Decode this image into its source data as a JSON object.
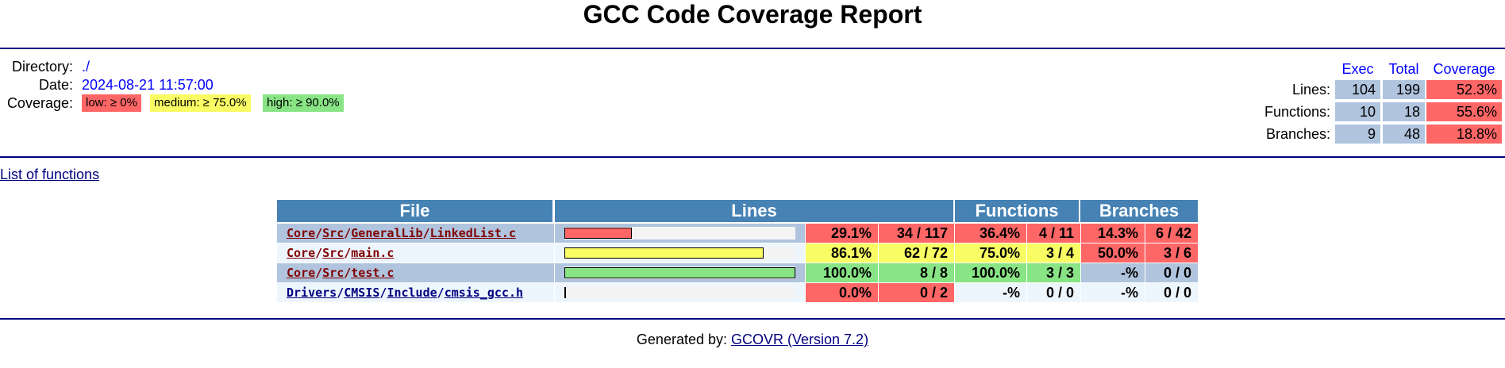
{
  "header": {
    "title": "GCC Code Coverage Report"
  },
  "info": {
    "directory_label": "Directory:",
    "directory_value": "./",
    "date_label": "Date:",
    "date_value": "2024-08-21 11:57:00",
    "coverage_label": "Coverage:",
    "legend": [
      {
        "label": "low: ≥ 0%",
        "color": "#ff6666"
      },
      {
        "label": "medium: ≥ 75.0%",
        "color": "#f9fd63"
      },
      {
        "label": "high: ≥ 90.0%",
        "color": "#88e485"
      }
    ]
  },
  "summary": {
    "headers": [
      "Exec",
      "Total",
      "Coverage"
    ],
    "rows": [
      {
        "label": "Lines:",
        "exec": "104",
        "total": "199",
        "coverage": "52.3%"
      },
      {
        "label": "Functions:",
        "exec": "10",
        "total": "18",
        "coverage": "55.6%"
      },
      {
        "label": "Branches:",
        "exec": "9",
        "total": "48",
        "coverage": "18.8%"
      }
    ]
  },
  "nav": {
    "list_of_functions": "List of functions"
  },
  "table": {
    "headers": {
      "file": "File",
      "lines": "Lines",
      "functions": "Functions",
      "branches": "Branches"
    },
    "rows": [
      {
        "path": [
          "Core",
          "Src",
          "GeneralLib",
          "LinkedList.c"
        ],
        "visited": true,
        "bar_pct": 29.1,
        "bar_color": "#ff6666",
        "lines_pct": "29.1%",
        "lines_count": "34 / 117",
        "lines_color": "#ff6666",
        "func_pct": "36.4%",
        "func_count": "4 / 11",
        "func_color": "#ff6666",
        "br_pct": "14.3%",
        "br_count": "6 / 42",
        "br_color": "#ff6666",
        "row_bg": "#b0c4de"
      },
      {
        "path": [
          "Core",
          "Src",
          "main.c"
        ],
        "visited": true,
        "bar_pct": 86.1,
        "bar_color": "#f9fd63",
        "lines_pct": "86.1%",
        "lines_count": "62 / 72",
        "lines_color": "#f9fd63",
        "func_pct": "75.0%",
        "func_count": "3 / 4",
        "func_color": "#f9fd63",
        "br_pct": "50.0%",
        "br_count": "3 / 6",
        "br_color": "#ff6666",
        "row_bg": "#eef6fd"
      },
      {
        "path": [
          "Core",
          "Src",
          "test.c"
        ],
        "visited": true,
        "bar_pct": 100.0,
        "bar_color": "#88e485",
        "lines_pct": "100.0%",
        "lines_count": "8 / 8",
        "lines_color": "#88e485",
        "func_pct": "100.0%",
        "func_count": "3 / 3",
        "func_color": "#88e485",
        "br_pct": "-%",
        "br_count": "0 / 0",
        "br_color": "#b0c4de",
        "row_bg": "#b0c4de"
      },
      {
        "path": [
          "Drivers",
          "CMSIS",
          "Include",
          "cmsis_gcc.h"
        ],
        "visited": false,
        "bar_pct": 0.0,
        "bar_color": "#ff6666",
        "lines_pct": "0.0%",
        "lines_count": "0 / 2",
        "lines_color": "#ff6666",
        "func_pct": "-%",
        "func_count": "0 / 0",
        "func_color": "#eef6fd",
        "br_pct": "-%",
        "br_count": "0 / 0",
        "br_color": "#eef6fd",
        "row_bg": "#eef6fd"
      }
    ]
  },
  "footer": {
    "generated_by": "Generated by: ",
    "link": "GCOVR (Version 7.2)"
  },
  "colors": {
    "rule": "#000080",
    "header_bg": "#4682b4",
    "low": "#ff6666",
    "medium": "#f9fd63",
    "high": "#88e485",
    "neutral": "#b0c4de"
  }
}
